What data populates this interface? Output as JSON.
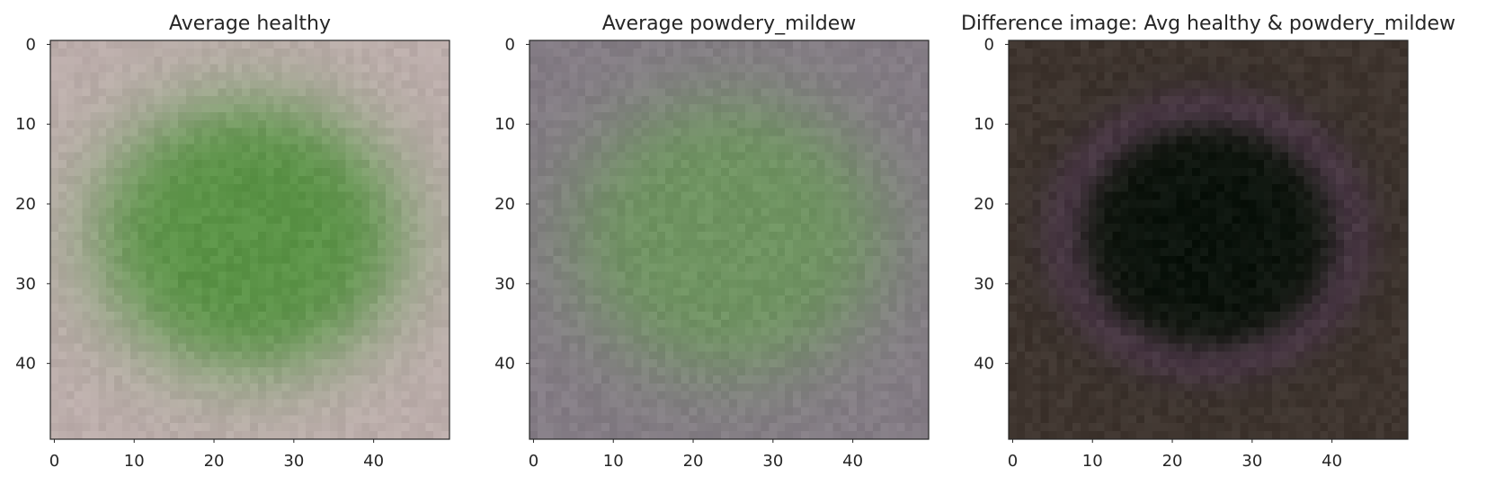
{
  "chart_data": [
    {
      "type": "heatmap",
      "title": "Average healthy",
      "xlabel": "",
      "ylabel": "",
      "xlim": [
        -0.5,
        49.5
      ],
      "ylim": [
        49.5,
        -0.5
      ],
      "xticks": [
        0,
        10,
        20,
        30,
        40
      ],
      "yticks": [
        0,
        10,
        20,
        30,
        40
      ],
      "grid": false,
      "image": {
        "rows": 50,
        "cols": 50,
        "background": "#bcadab",
        "center": "#5a9346",
        "halo": "#98a98a"
      }
    },
    {
      "type": "heatmap",
      "title": "Average powdery_mildew",
      "xlabel": "",
      "ylabel": "",
      "xlim": [
        -0.5,
        49.5
      ],
      "ylim": [
        49.5,
        -0.5
      ],
      "xticks": [
        0,
        10,
        20,
        30,
        40
      ],
      "yticks": [
        0,
        10,
        20,
        30,
        40
      ],
      "grid": false,
      "image": {
        "rows": 50,
        "cols": 50,
        "background": "#847c85",
        "center": "#6f9461",
        "halo": "#7f8a79"
      }
    },
    {
      "type": "heatmap",
      "title": "Difference image: Avg healthy & powdery_mildew",
      "xlabel": "",
      "ylabel": "",
      "xlim": [
        -0.5,
        49.5
      ],
      "ylim": [
        49.5,
        -0.5
      ],
      "xticks": [
        0,
        10,
        20,
        30,
        40
      ],
      "yticks": [
        0,
        10,
        20,
        30,
        40
      ],
      "grid": false,
      "image": {
        "rows": 50,
        "cols": 50,
        "background": "#3f352f",
        "center": "#0b130c",
        "halo": "#5a4058"
      }
    }
  ]
}
